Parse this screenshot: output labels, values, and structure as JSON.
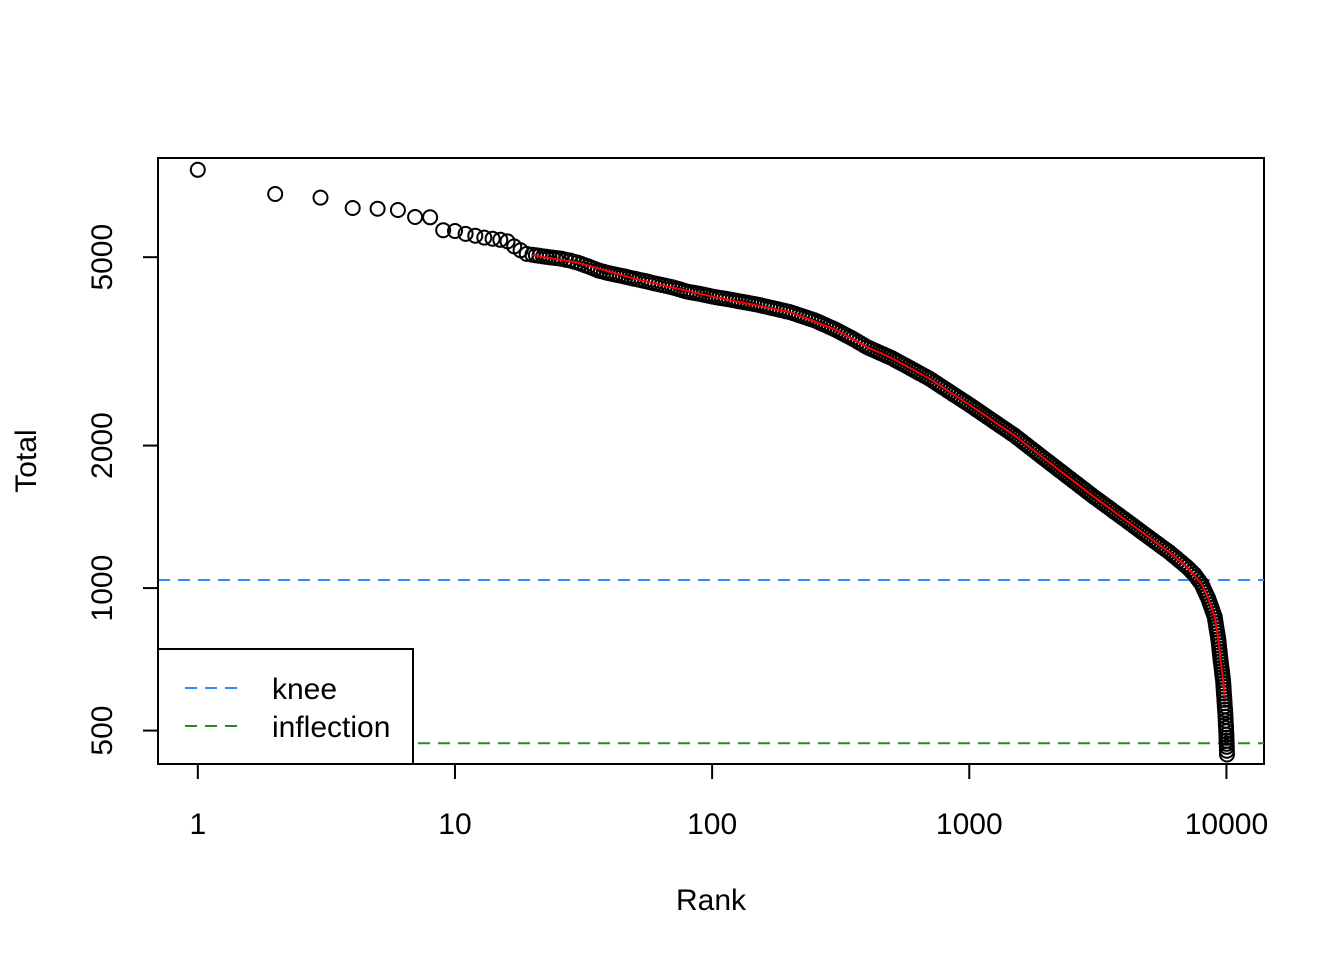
{
  "chart_data": {
    "type": "scatter",
    "title": "",
    "xlabel": "Rank",
    "ylabel": "Total",
    "x_scale": "log",
    "y_scale": "log",
    "xlim": [
      0.7,
      14000
    ],
    "ylim": [
      425,
      8100
    ],
    "x_ticks": [
      {
        "value": 1,
        "label": "1"
      },
      {
        "value": 10,
        "label": "10"
      },
      {
        "value": 100,
        "label": "100"
      },
      {
        "value": 1000,
        "label": "1000"
      },
      {
        "value": 10000,
        "label": "10000"
      }
    ],
    "y_ticks": [
      {
        "value": 500,
        "label": "500"
      },
      {
        "value": 1000,
        "label": "1000"
      },
      {
        "value": 2000,
        "label": "2000"
      },
      {
        "value": 5000,
        "label": "5000"
      }
    ],
    "grid": false,
    "legend": {
      "position": "bottom-left",
      "entries": [
        {
          "label": "knee",
          "color": "#3388ff",
          "style": "dashed"
        },
        {
          "label": "inflection",
          "color": "#228B22",
          "style": "dashed"
        }
      ]
    },
    "hlines": [
      {
        "name": "knee",
        "y": 1040,
        "color": "#3388ff"
      },
      {
        "name": "inflection",
        "y": 470,
        "color": "#228B22"
      }
    ],
    "series": [
      {
        "kind": "points",
        "style": "open-circle",
        "color": "#000000",
        "points": [
          [
            1,
            7650
          ],
          [
            2,
            6800
          ],
          [
            3,
            6680
          ],
          [
            4,
            6350
          ],
          [
            5,
            6330
          ],
          [
            6,
            6290
          ],
          [
            7,
            6080
          ],
          [
            8,
            6070
          ],
          [
            9,
            5700
          ],
          [
            10,
            5680
          ],
          [
            11,
            5600
          ],
          [
            12,
            5550
          ],
          [
            13,
            5500
          ],
          [
            14,
            5470
          ],
          [
            15,
            5440
          ],
          [
            16,
            5400
          ],
          [
            17,
            5270
          ],
          [
            18,
            5170
          ],
          [
            19,
            5080
          ],
          [
            20,
            5060
          ],
          [
            22,
            5020
          ],
          [
            24,
            4990
          ],
          [
            26,
            4960
          ],
          [
            28,
            4920
          ],
          [
            30,
            4870
          ],
          [
            33,
            4780
          ],
          [
            36,
            4690
          ],
          [
            40,
            4620
          ],
          [
            45,
            4560
          ],
          [
            50,
            4500
          ],
          [
            55,
            4450
          ],
          [
            60,
            4400
          ],
          [
            70,
            4320
          ],
          [
            80,
            4230
          ],
          [
            90,
            4180
          ],
          [
            100,
            4130
          ],
          [
            120,
            4060
          ],
          [
            150,
            3970
          ],
          [
            200,
            3830
          ],
          [
            250,
            3680
          ],
          [
            300,
            3520
          ],
          [
            350,
            3370
          ],
          [
            400,
            3230
          ],
          [
            500,
            3060
          ],
          [
            700,
            2770
          ],
          [
            1000,
            2440
          ],
          [
            1500,
            2100
          ],
          [
            2000,
            1860
          ],
          [
            3000,
            1570
          ],
          [
            4000,
            1400
          ],
          [
            5000,
            1280
          ],
          [
            6000,
            1190
          ],
          [
            7000,
            1110
          ],
          [
            7500,
            1070
          ],
          [
            8000,
            1020
          ],
          [
            8500,
            950
          ],
          [
            9000,
            870
          ],
          [
            9300,
            780
          ],
          [
            9500,
            700
          ],
          [
            9700,
            640
          ],
          [
            9800,
            590
          ],
          [
            9900,
            545
          ],
          [
            9950,
            515
          ],
          [
            10000,
            490
          ],
          [
            10030,
            462
          ],
          [
            10050,
            445
          ]
        ]
      },
      {
        "kind": "fitted-curve",
        "color": "#ff0000",
        "points": [
          [
            20,
            5050
          ],
          [
            30,
            4870
          ],
          [
            50,
            4500
          ],
          [
            100,
            4130
          ],
          [
            200,
            3830
          ],
          [
            300,
            3520
          ],
          [
            400,
            3230
          ],
          [
            500,
            3060
          ],
          [
            700,
            2770
          ],
          [
            1000,
            2440
          ],
          [
            1500,
            2100
          ],
          [
            2000,
            1860
          ],
          [
            3000,
            1570
          ],
          [
            4000,
            1400
          ],
          [
            5000,
            1280
          ],
          [
            6000,
            1190
          ],
          [
            7000,
            1110
          ],
          [
            8000,
            1020
          ],
          [
            8500,
            950
          ],
          [
            9000,
            870
          ],
          [
            9300,
            780
          ],
          [
            9500,
            700
          ],
          [
            9700,
            640
          ],
          [
            9850,
            590
          ]
        ]
      }
    ]
  }
}
